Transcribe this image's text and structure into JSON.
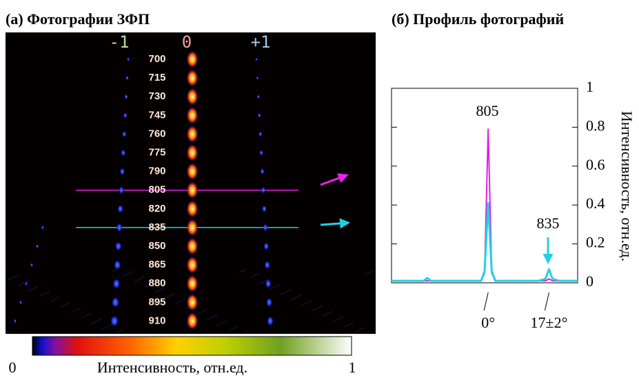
{
  "panel_a": {
    "title": "(а) Фотографии ЗФП",
    "orders": [
      "-1",
      "0",
      "+1"
    ],
    "wavelengths": [
      "700",
      "715",
      "730",
      "745",
      "760",
      "775",
      "790",
      "805",
      "820",
      "835",
      "850",
      "865",
      "880",
      "895",
      "910"
    ],
    "colorbar": {
      "min_label": "0",
      "label": "Интенсивность, отн.ед.",
      "max_label": "1"
    }
  },
  "chart_data": {
    "type": "line",
    "title": "(б) Профиль фотографий",
    "y_label": "Интенсивность, отн.ед.",
    "x": [
      -27,
      -20,
      -18,
      -17,
      -16,
      -14,
      -2,
      -1,
      0,
      1,
      2,
      14,
      16,
      17,
      18,
      20,
      25
    ],
    "series": [
      {
        "name": "805",
        "color": "#e020e0",
        "values": [
          0.01,
          0.01,
          0.01,
          0.01,
          0.01,
          0.01,
          0.01,
          0.05,
          0.79,
          0.05,
          0.01,
          0.01,
          0.01,
          0.02,
          0.01,
          0.01,
          0.01
        ]
      },
      {
        "name": "835",
        "color": "#22d0e6",
        "values": [
          0.01,
          0.01,
          0.01,
          0.025,
          0.01,
          0.01,
          0.01,
          0.06,
          0.41,
          0.06,
          0.01,
          0.01,
          0.02,
          0.07,
          0.02,
          0.01,
          0.01
        ]
      }
    ],
    "xlim": [
      -27,
      25
    ],
    "ylim": [
      0,
      1
    ],
    "xticks": [
      {
        "value": 0,
        "label": "0°"
      },
      {
        "value": 17,
        "label": "17±2°"
      }
    ],
    "yticks": [
      0,
      0.2,
      0.4,
      0.6,
      0.8,
      1
    ]
  }
}
